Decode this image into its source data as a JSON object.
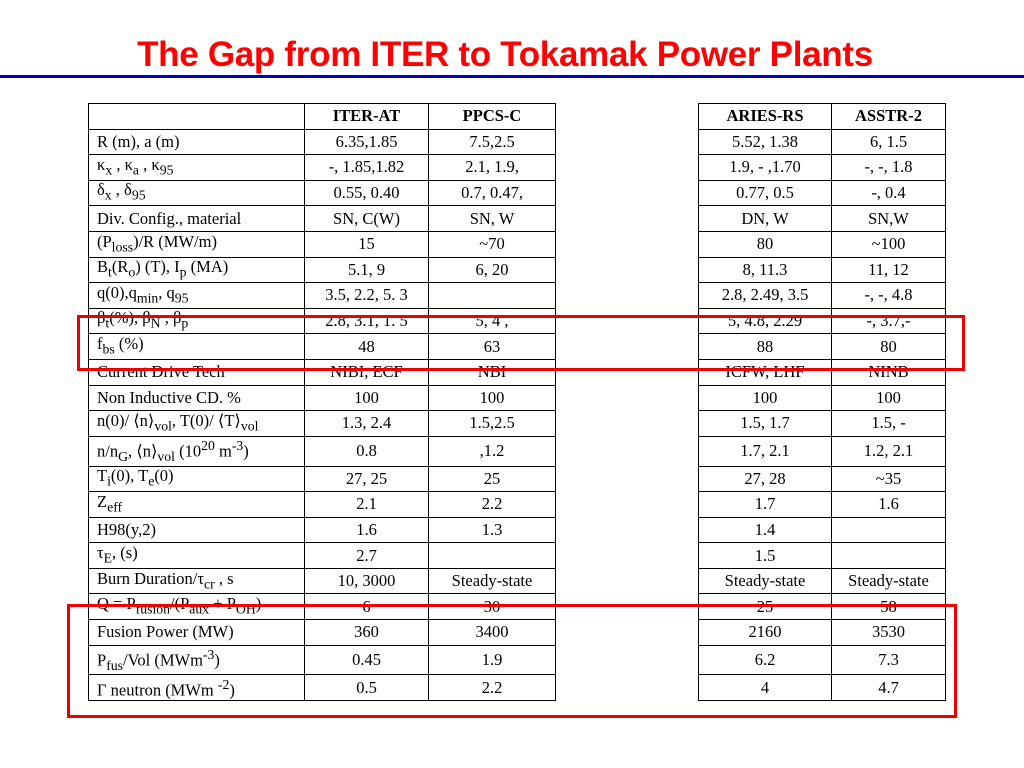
{
  "title": "The Gap from  ITER to Tokamak  Power Plants",
  "table": {
    "headers": [
      "ITER-AT",
      "PPCS-C",
      "ARIES-RS",
      "ASSTR-2"
    ],
    "rows": [
      {
        "label": "R (m), a (m)",
        "v": [
          "6.35,1.85",
          "7.5,2.5",
          "5.52, 1.38",
          "6, 1.5"
        ]
      },
      {
        "label": "κx , κa , κ95",
        "v": [
          "-, 1.85,1.82",
          "2.1, 1.9,",
          "1.9, - ,1.70",
          "-, -, 1.8"
        ]
      },
      {
        "label": "δx , δ95",
        "v": [
          "0.55, 0.40",
          "0.7, 0.47,",
          "0.77, 0.5",
          "-, 0.4"
        ]
      },
      {
        "label": "Div. Config., material",
        "v": [
          "SN, C(W)",
          "SN, W",
          "DN, W",
          "SN,W"
        ]
      },
      {
        "label": "(Ploss)/R (MW/m)",
        "v": [
          "15",
          "~70",
          "80",
          "~100"
        ]
      },
      {
        "label": "Bt(Ro) (T), Ip (MA)",
        "v": [
          "5.1, 9",
          "6, 20",
          "8, 11.3",
          "11, 12"
        ]
      },
      {
        "label": "q(0),qmin, q95",
        "v": [
          "3.5, 2.2, 5. 3",
          "",
          "2.8, 2.49, 3.5",
          "-, -, 4.8"
        ]
      },
      {
        "label": "βt(%), βN , βp",
        "v": [
          "2.8, 3.1, 1. 5",
          "5, 4 ,",
          "5, 4.8, 2.29",
          "-, 3.7,-"
        ]
      },
      {
        "label": "fbs (%)",
        "v": [
          "48",
          "63",
          "88",
          "80"
        ]
      },
      {
        "label": "Current Drive Tech",
        "v": [
          "NIBI, ECF",
          "NBI",
          "ICFW, LHF",
          "NINB"
        ]
      },
      {
        "label": "Non Inductive CD. %",
        "v": [
          "100",
          "100",
          "100",
          "100"
        ]
      },
      {
        "label": "n(0)/ ⟨n⟩vol, T(0)/ ⟨T⟩vol",
        "v": [
          "1.3, 2.4",
          "1.5,2.5",
          "1.5, 1.7",
          "1.5, -"
        ]
      },
      {
        "label": "n/nG, ⟨n⟩vol (1020 m-3)",
        "v": [
          "0.8",
          ",1.2",
          "1.7, 2.1",
          "1.2, 2.1"
        ]
      },
      {
        "label": "Ti(0), Te(0)",
        "v": [
          "27, 25",
          "25",
          "27, 28",
          "~35"
        ]
      },
      {
        "label": "Zeff",
        "v": [
          "2.1",
          "2.2",
          "1.7",
          "1.6"
        ]
      },
      {
        "label": "H98(y,2)",
        "v": [
          "1.6",
          "1.3",
          "1.4",
          ""
        ]
      },
      {
        "label": "τE, (s)",
        "v": [
          "2.7",
          "",
          "1.5",
          ""
        ]
      },
      {
        "label": "Burn Duration/τcr , s",
        "v": [
          "10, 3000",
          "Steady-state",
          "Steady-state",
          "Steady-state"
        ]
      },
      {
        "label": "Q = Pfusion/(Paux + POH)",
        "v": [
          "6",
          "30",
          "25",
          "58"
        ]
      },
      {
        "label": "Fusion Power (MW)",
        "v": [
          "360",
          "3400",
          "2160",
          "3530"
        ]
      },
      {
        "label": "Pfus/Vol (MWm-3)",
        "v": [
          "0.45",
          "1.9",
          "6.2",
          "7.3"
        ]
      },
      {
        "label": "Γ neutron (MWm -2)",
        "v": [
          "0.5",
          "2.2",
          "4",
          "4.7"
        ]
      }
    ]
  },
  "highlight_color": "#ee0000"
}
